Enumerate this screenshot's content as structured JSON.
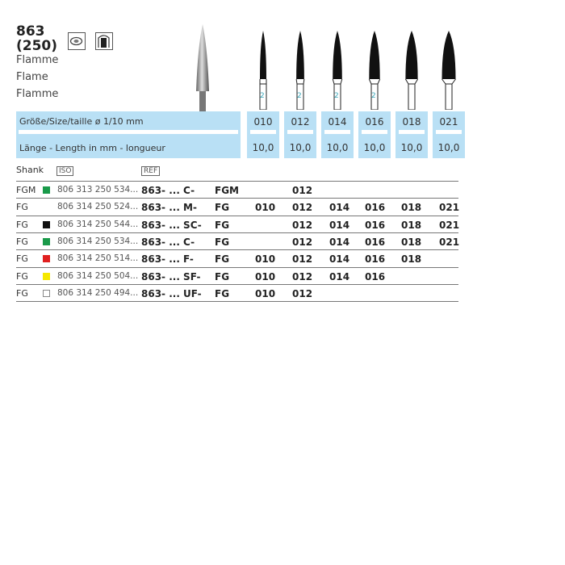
{
  "product": {
    "number": "863",
    "iso_code": "(250)",
    "names": [
      "Flamme",
      "Flame",
      "Flamme"
    ],
    "icons": [
      "oral-tissue-icon",
      "crown-prep-icon"
    ]
  },
  "band": {
    "size_label": "Größe/Size/taille  ø ",
    "size_fraction": "1/10 mm",
    "length_label": "Länge - Length in mm - longueur"
  },
  "sizes": [
    {
      "size": "010",
      "length": "10,0",
      "marking": "2"
    },
    {
      "size": "012",
      "length": "10,0",
      "marking": "2"
    },
    {
      "size": "014",
      "length": "10,0",
      "marking": "2"
    },
    {
      "size": "016",
      "length": "10,0",
      "marking": "2"
    },
    {
      "size": "018",
      "length": "10,0",
      "marking": ""
    },
    {
      "size": "021",
      "length": "10,0",
      "marking": ""
    }
  ],
  "table": {
    "header": {
      "shank": "Shank",
      "iso": "ISO",
      "ref": "REF"
    },
    "rows": [
      {
        "shank": "FGM",
        "color": "#1a9a4a",
        "iso": "806 313 250 534...",
        "ref": "863- ... C-",
        "ref_shank": "FGM",
        "sizes": [
          "",
          "012",
          "",
          "",
          "",
          ""
        ]
      },
      {
        "shank": "FG",
        "color": "",
        "iso": "806 314 250 524...",
        "ref": "863- ... M-",
        "ref_shank": "FG",
        "sizes": [
          "010",
          "012",
          "014",
          "016",
          "018",
          "021"
        ]
      },
      {
        "shank": "FG",
        "color": "#111111",
        "iso": "806 314 250 544...",
        "ref": "863- ... SC-",
        "ref_shank": "FG",
        "sizes": [
          "",
          "012",
          "014",
          "016",
          "018",
          "021"
        ]
      },
      {
        "shank": "FG",
        "color": "#1a9a4a",
        "iso": "806 314 250 534...",
        "ref": "863- ... C-",
        "ref_shank": "FG",
        "sizes": [
          "",
          "012",
          "014",
          "016",
          "018",
          "021"
        ]
      },
      {
        "shank": "FG",
        "color": "#e02020",
        "iso": "806 314 250 514...",
        "ref": "863- ... F-",
        "ref_shank": "FG",
        "sizes": [
          "010",
          "012",
          "014",
          "016",
          "018",
          ""
        ]
      },
      {
        "shank": "FG",
        "color": "#f5e800",
        "iso": "806 314 250 504...",
        "ref": "863- ... SF-",
        "ref_shank": "FG",
        "sizes": [
          "010",
          "012",
          "014",
          "016",
          "",
          ""
        ]
      },
      {
        "shank": "FG",
        "color": "#ffffff",
        "iso": "806 314 250 494...",
        "ref": "863- ... UF-",
        "ref_shank": "FG",
        "sizes": [
          "010",
          "012",
          "",
          "",
          "",
          ""
        ]
      }
    ]
  }
}
